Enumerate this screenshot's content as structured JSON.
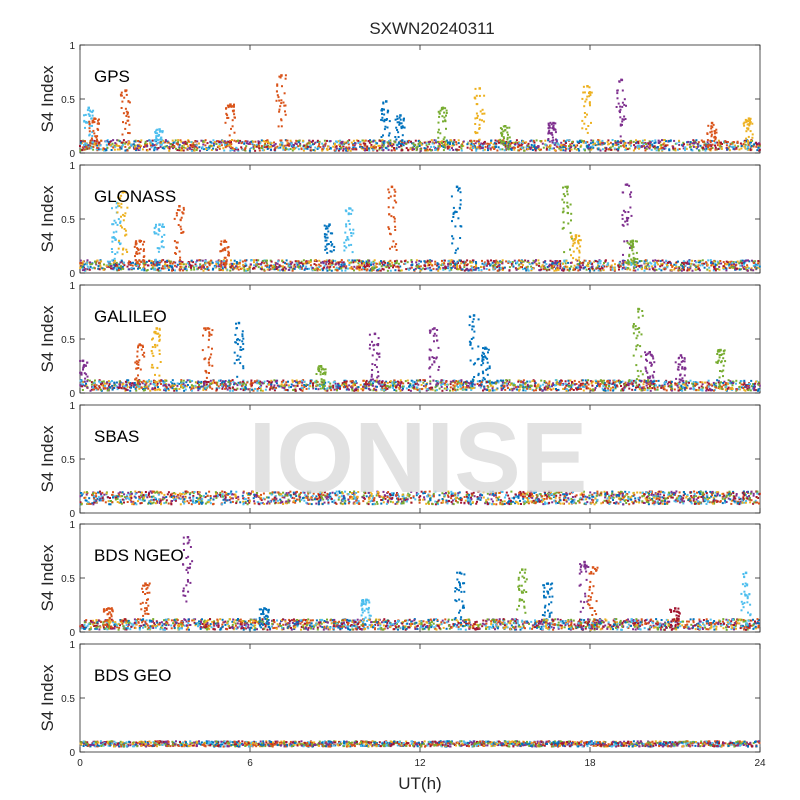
{
  "chart_data": {
    "type": "scatter",
    "title": "SXWN20240311",
    "xlabel": "UT(h)",
    "ylabel": "S4 Index",
    "xlim": [
      0,
      24
    ],
    "ylim": [
      0,
      1
    ],
    "x_ticks": [
      "0",
      "6",
      "12",
      "18",
      "24"
    ],
    "y_ticks": [
      "0",
      "0.5",
      "1"
    ],
    "watermark": "IONISE",
    "series_colors": [
      "#0072bd",
      "#d95319",
      "#edb120",
      "#7e2f8e",
      "#77ac30",
      "#4dbeee",
      "#a2142f"
    ],
    "panels": [
      {
        "label": "GPS",
        "baseline": [
          0.02,
          0.12
        ],
        "peaks": [
          {
            "t": 0.3,
            "v": 0.42,
            "c": 5
          },
          {
            "t": 0.5,
            "v": 0.32,
            "c": 1
          },
          {
            "t": 1.6,
            "v": 0.58,
            "c": 1
          },
          {
            "t": 2.8,
            "v": 0.22,
            "c": 5
          },
          {
            "t": 5.3,
            "v": 0.45,
            "c": 1
          },
          {
            "t": 7.1,
            "v": 0.72,
            "c": 1
          },
          {
            "t": 10.8,
            "v": 0.48,
            "c": 0
          },
          {
            "t": 11.3,
            "v": 0.35,
            "c": 0
          },
          {
            "t": 12.8,
            "v": 0.42,
            "c": 4
          },
          {
            "t": 14.1,
            "v": 0.6,
            "c": 2
          },
          {
            "t": 15.0,
            "v": 0.25,
            "c": 4
          },
          {
            "t": 16.7,
            "v": 0.28,
            "c": 3
          },
          {
            "t": 17.9,
            "v": 0.62,
            "c": 2
          },
          {
            "t": 19.1,
            "v": 0.68,
            "c": 3
          },
          {
            "t": 22.3,
            "v": 0.28,
            "c": 1
          },
          {
            "t": 23.6,
            "v": 0.32,
            "c": 2
          }
        ]
      },
      {
        "label": "GLONASS",
        "baseline": [
          0.02,
          0.12
        ],
        "peaks": [
          {
            "t": 1.3,
            "v": 0.65,
            "c": 5
          },
          {
            "t": 1.5,
            "v": 0.75,
            "c": 2
          },
          {
            "t": 2.1,
            "v": 0.3,
            "c": 1
          },
          {
            "t": 2.8,
            "v": 0.45,
            "c": 5
          },
          {
            "t": 3.5,
            "v": 0.62,
            "c": 1
          },
          {
            "t": 5.1,
            "v": 0.3,
            "c": 1
          },
          {
            "t": 8.8,
            "v": 0.45,
            "c": 0
          },
          {
            "t": 9.5,
            "v": 0.6,
            "c": 5
          },
          {
            "t": 11.0,
            "v": 0.8,
            "c": 1
          },
          {
            "t": 13.3,
            "v": 0.8,
            "c": 0
          },
          {
            "t": 17.2,
            "v": 0.8,
            "c": 4
          },
          {
            "t": 17.5,
            "v": 0.35,
            "c": 2
          },
          {
            "t": 19.3,
            "v": 0.82,
            "c": 3
          },
          {
            "t": 19.5,
            "v": 0.3,
            "c": 4
          }
        ]
      },
      {
        "label": "GALILEO",
        "baseline": [
          0.02,
          0.12
        ],
        "peaks": [
          {
            "t": 0.1,
            "v": 0.3,
            "c": 3
          },
          {
            "t": 2.1,
            "v": 0.45,
            "c": 1
          },
          {
            "t": 2.7,
            "v": 0.6,
            "c": 2
          },
          {
            "t": 4.5,
            "v": 0.6,
            "c": 1
          },
          {
            "t": 5.6,
            "v": 0.65,
            "c": 0
          },
          {
            "t": 8.5,
            "v": 0.25,
            "c": 4
          },
          {
            "t": 10.4,
            "v": 0.55,
            "c": 3
          },
          {
            "t": 12.5,
            "v": 0.6,
            "c": 3
          },
          {
            "t": 13.9,
            "v": 0.72,
            "c": 0
          },
          {
            "t": 14.3,
            "v": 0.42,
            "c": 0
          },
          {
            "t": 19.7,
            "v": 0.78,
            "c": 4
          },
          {
            "t": 20.1,
            "v": 0.38,
            "c": 3
          },
          {
            "t": 21.2,
            "v": 0.35,
            "c": 3
          },
          {
            "t": 22.6,
            "v": 0.4,
            "c": 4
          }
        ]
      },
      {
        "label": "SBAS",
        "baseline": [
          0.08,
          0.2
        ],
        "peaks": []
      },
      {
        "label": "BDS NGEO",
        "baseline": [
          0.02,
          0.12
        ],
        "peaks": [
          {
            "t": 1.0,
            "v": 0.22,
            "c": 1
          },
          {
            "t": 2.3,
            "v": 0.45,
            "c": 1
          },
          {
            "t": 3.8,
            "v": 0.88,
            "c": 3
          },
          {
            "t": 6.5,
            "v": 0.22,
            "c": 0
          },
          {
            "t": 10.1,
            "v": 0.3,
            "c": 5
          },
          {
            "t": 13.4,
            "v": 0.55,
            "c": 0
          },
          {
            "t": 15.6,
            "v": 0.58,
            "c": 4
          },
          {
            "t": 16.5,
            "v": 0.45,
            "c": 0
          },
          {
            "t": 17.8,
            "v": 0.65,
            "c": 3
          },
          {
            "t": 18.1,
            "v": 0.6,
            "c": 1
          },
          {
            "t": 21.0,
            "v": 0.22,
            "c": 6
          },
          {
            "t": 23.5,
            "v": 0.55,
            "c": 5
          }
        ]
      },
      {
        "label": "BDS GEO",
        "baseline": [
          0.05,
          0.1
        ],
        "peaks": []
      }
    ]
  }
}
